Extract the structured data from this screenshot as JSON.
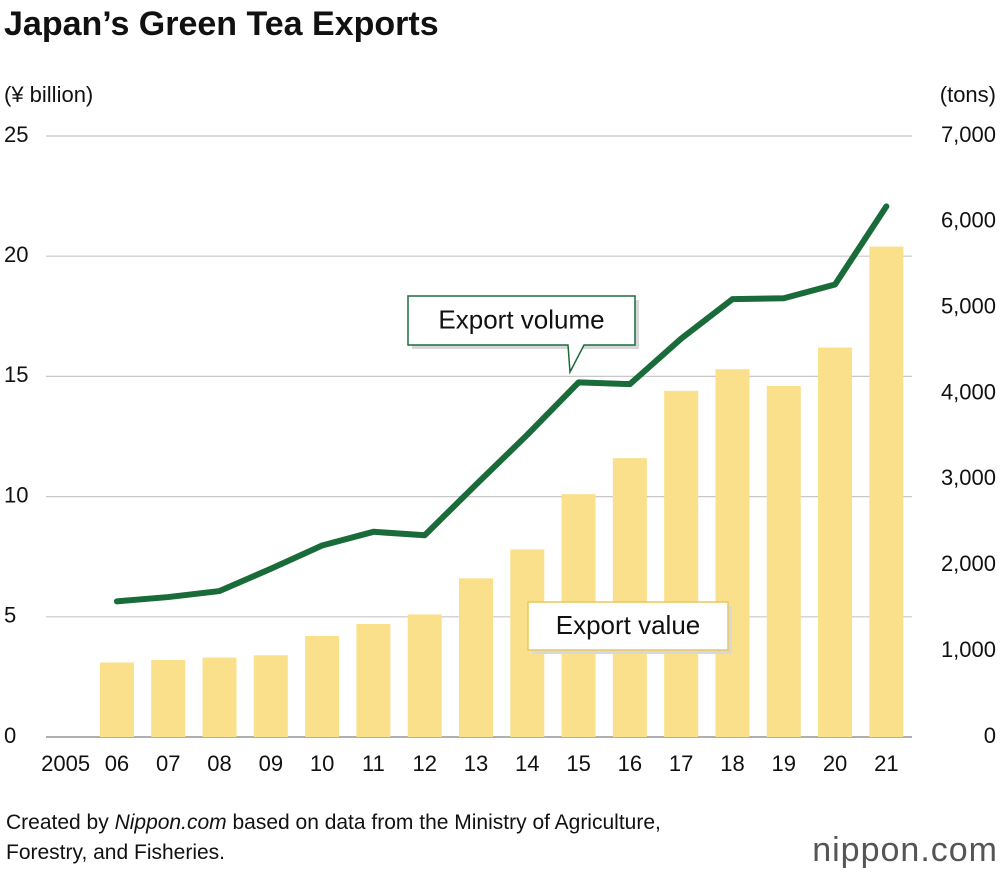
{
  "chart_data": {
    "type": "bar_line",
    "title": "Japan’s Green Tea Exports",
    "y_label": "(¥ billion)",
    "y2_label": "(tons)",
    "categories": [
      "2005",
      "06",
      "07",
      "08",
      "09",
      "10",
      "11",
      "12",
      "13",
      "14",
      "15",
      "16",
      "17",
      "18",
      "19",
      "20",
      "21"
    ],
    "series": [
      {
        "name": "Export value",
        "type": "bar",
        "color": "#fae08a",
        "axis": "y",
        "values": [
          null,
          3.1,
          3.2,
          3.3,
          3.4,
          4.2,
          4.7,
          5.1,
          6.6,
          7.8,
          10.1,
          11.6,
          14.4,
          15.3,
          14.6,
          16.2,
          20.4
        ]
      },
      {
        "name": "Export volume",
        "type": "line",
        "color": "#1a6b3a",
        "axis": "y2",
        "values": [
          null,
          1580,
          1630,
          1700,
          1960,
          2230,
          2390,
          2350,
          2940,
          3520,
          4130,
          4110,
          4640,
          5100,
          5110,
          5270,
          6180
        ]
      }
    ],
    "ylim": [
      0,
      25
    ],
    "yticks": [
      0,
      5,
      10,
      15,
      20,
      25
    ],
    "y2lim": [
      0,
      7000
    ],
    "y2ticks": [
      0,
      {
        "value": 1000,
        "label": "1,000"
      },
      {
        "value": 2000,
        "label": "2,000"
      },
      {
        "value": 3000,
        "label": "3,000"
      },
      {
        "value": 4000,
        "label": "4,000"
      },
      {
        "value": 5000,
        "label": "5,000"
      },
      {
        "value": 6000,
        "label": "6,000"
      },
      {
        "value": 7000,
        "label": "7,000"
      }
    ],
    "grid": true,
    "source": {
      "prefix": "Created by ",
      "site": "Nippon.com",
      "suffix": " based on data from the Ministry of Agriculture, Forestry, and Fisheries."
    },
    "logo": "nippon.com"
  }
}
